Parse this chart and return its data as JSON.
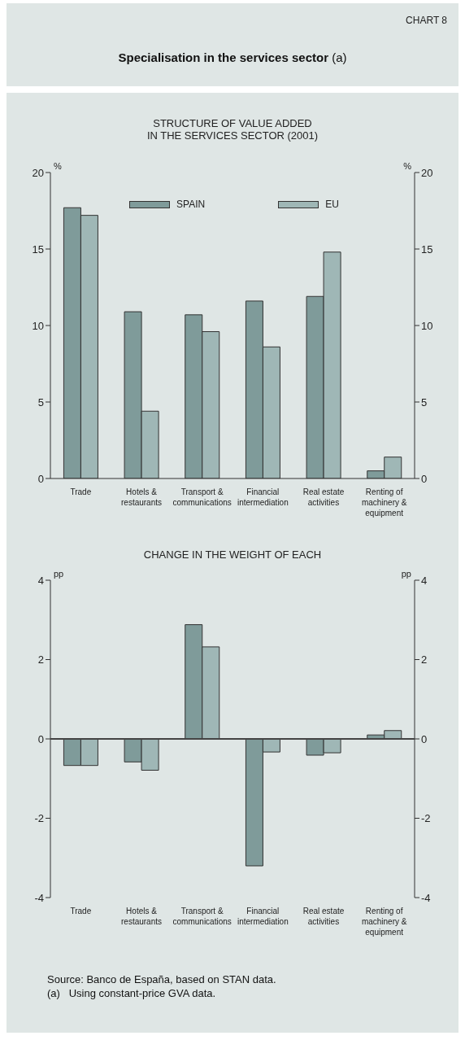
{
  "chart_data": [
    {
      "type": "bar",
      "title": "Specialisation in the services sector (a)",
      "subtitle": "STRUCTURE OF VALUE ADDED\nIN THE SERVICES SECTOR (2001)",
      "annotations": [
        "CHART 8"
      ],
      "ylabel": "%",
      "y2label": "%",
      "categories": [
        "Trade",
        "Hotels & restaurants",
        "Transport & communications",
        "Financial intermediation",
        "Real estate activities",
        "Renting of machinery & equipment"
      ],
      "series": [
        {
          "name": "SPAIN",
          "color": "#7f9b9a",
          "values": [
            17.7,
            10.9,
            10.7,
            11.6,
            11.9,
            0.5
          ]
        },
        {
          "name": "EU",
          "color": "#9fb7b6",
          "values": [
            17.2,
            4.4,
            9.6,
            8.6,
            14.8,
            1.4
          ]
        }
      ],
      "ylim": [
        0,
        20
      ],
      "yticks": [
        0,
        5,
        10,
        15,
        20
      ],
      "y2lim": [
        0,
        20
      ],
      "y2ticks": [
        0,
        5,
        10,
        15,
        20
      ],
      "grid": false,
      "legend": "top"
    },
    {
      "type": "bar",
      "title": "CHANGE IN THE WEIGHT OF EACH",
      "ylabel": "pp",
      "y2label": "pp",
      "annotations": [
        "Source: Banco de España, based on STAN data.",
        "(a)   Using constant-price GVA data."
      ],
      "categories": [
        "Trade",
        "Hotels & restaurants",
        "Transport & communications",
        "Financial intermediation",
        "Real estate activities",
        "Renting of machinery & equipment"
      ],
      "series": [
        {
          "color": "#7f9b9a",
          "values": [
            -0.67,
            -0.58,
            2.88,
            -3.2,
            -0.41,
            0.1
          ]
        },
        {
          "color": "#9fb7b6",
          "values": [
            -0.67,
            -0.79,
            2.32,
            -0.33,
            -0.35,
            0.21
          ]
        }
      ],
      "ylim": [
        -4,
        4
      ],
      "yticks": [
        -4,
        -2,
        0,
        2,
        4
      ],
      "y2lim": [
        -4,
        4
      ],
      "y2ticks": [
        -4,
        -2,
        0,
        2,
        4
      ],
      "grid": false,
      "legend": false
    }
  ]
}
